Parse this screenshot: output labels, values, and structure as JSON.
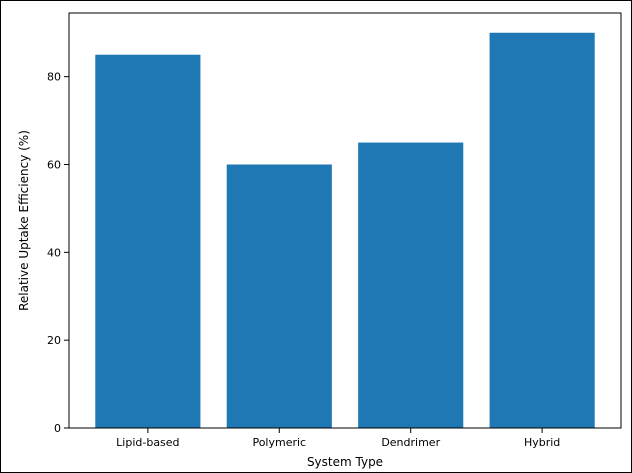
{
  "chart_data": {
    "type": "bar",
    "categories": [
      "Lipid-based",
      "Polymeric",
      "Dendrimer",
      "Hybrid"
    ],
    "values": [
      85,
      60,
      65,
      90
    ],
    "title": "",
    "xlabel": "System Type",
    "ylabel": "Relative Uptake Efficiency (%)",
    "ylim": [
      0,
      94.5
    ],
    "yticks": [
      0,
      20,
      40,
      60,
      80
    ],
    "grid": false,
    "legend": "none",
    "bar_color": "#1f77b4"
  }
}
